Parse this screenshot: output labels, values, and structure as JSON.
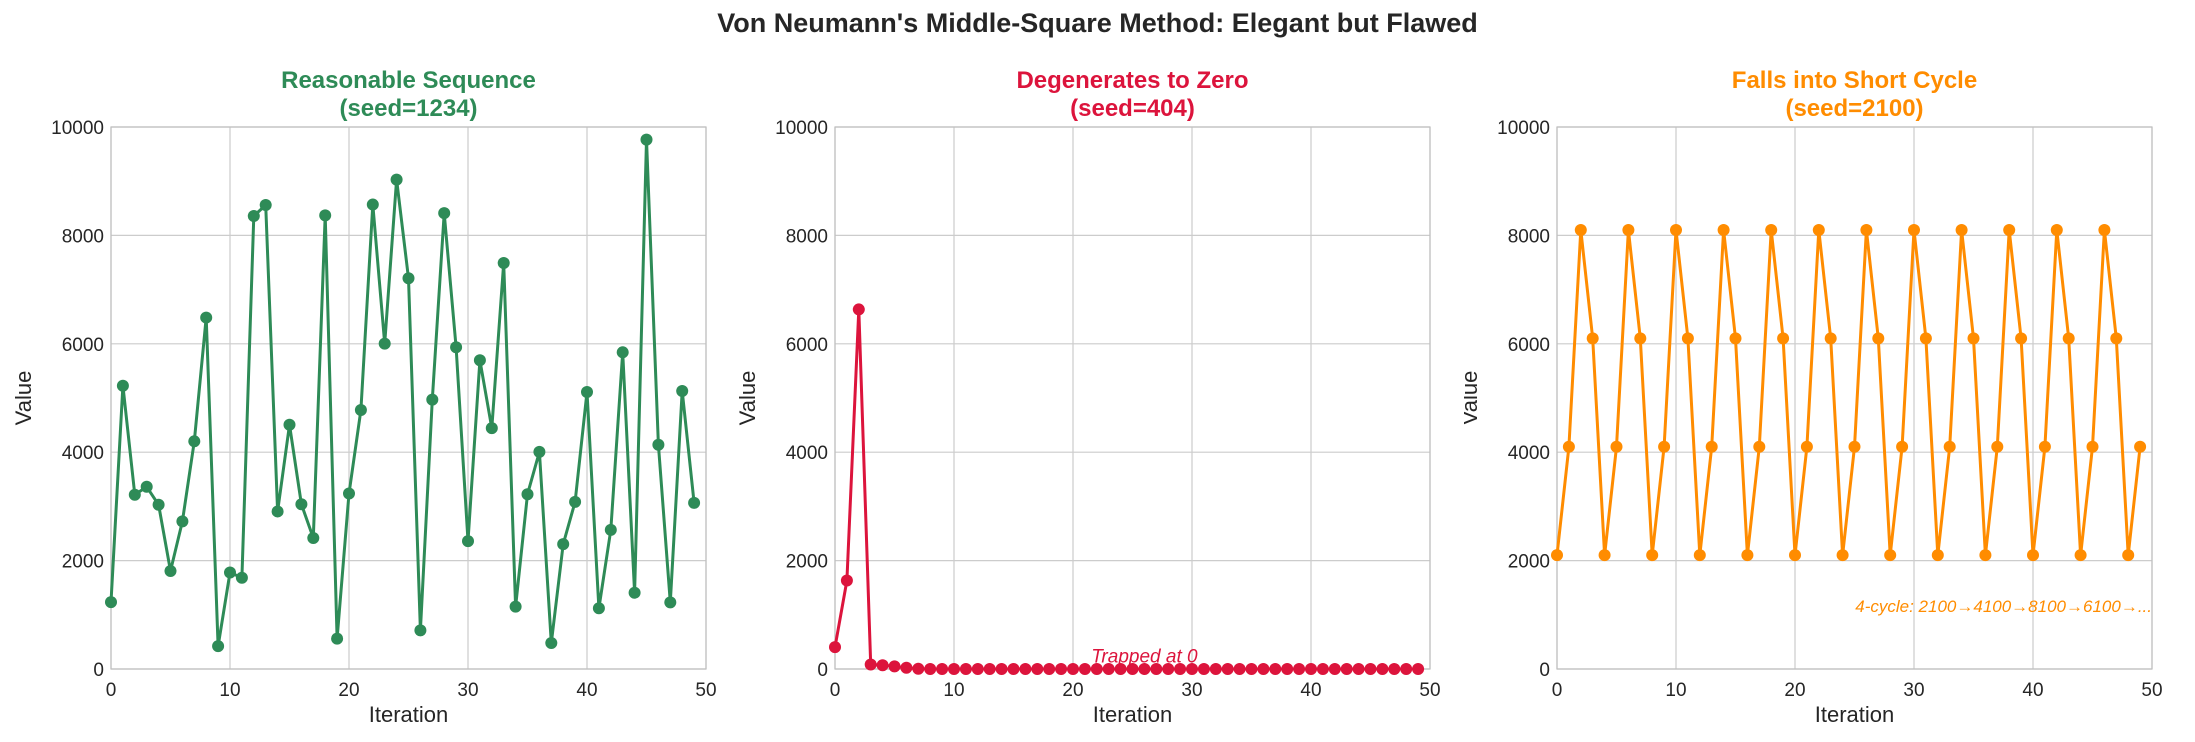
{
  "figure": {
    "title": "Von Neumann's Middle-Square Method: Elegant but Flawed"
  },
  "chart_data": [
    {
      "type": "line",
      "title": "Reasonable Sequence\n(seed=1234)",
      "title_color": "#2e8b57",
      "color": "#2e8b57",
      "xlabel": "Iteration",
      "ylabel": "Value",
      "xlim": [
        0,
        50
      ],
      "ylim": [
        0,
        10000
      ],
      "xticks": [
        "0",
        "10",
        "20",
        "30",
        "40",
        "50"
      ],
      "yticks": [
        "0",
        "2000",
        "4000",
        "6000",
        "8000",
        "10000"
      ],
      "grid": true,
      "annotation": "",
      "x": [
        0,
        1,
        2,
        3,
        4,
        5,
        6,
        7,
        8,
        9,
        10,
        11,
        12,
        13,
        14,
        15,
        16,
        17,
        18,
        19,
        20,
        21,
        22,
        23,
        24,
        25,
        26,
        27,
        28,
        29,
        30,
        31,
        32,
        33,
        34,
        35,
        36,
        37,
        38,
        39,
        40,
        41,
        42,
        43,
        44,
        45,
        46,
        47,
        48,
        49
      ],
      "values": [
        1234,
        5227,
        3215,
        3362,
        3030,
        1809,
        2724,
        4201,
        6484,
        422,
        1780,
        1684,
        8358,
        8561,
        2907,
        4506,
        3040,
        2416,
        8370,
        561,
        3237,
        4779,
        8569,
        6003,
        9030,
        7209,
        712,
        4971,
        8410,
        5936,
        2360,
        5696,
        4444,
        7491,
        1150,
        3225,
        4006,
        480,
        2304,
        3084,
        5110,
        1121,
        2566,
        5843,
        1406,
        9768,
        4138,
        1230,
        5129,
        3066
      ]
    },
    {
      "type": "line",
      "title": "Degenerates to Zero\n(seed=404)",
      "title_color": "#dc143c",
      "color": "#dc143c",
      "xlabel": "Iteration",
      "ylabel": "Value",
      "xlim": [
        0,
        50
      ],
      "ylim": [
        0,
        10000
      ],
      "xticks": [
        "0",
        "10",
        "20",
        "30",
        "40",
        "50"
      ],
      "yticks": [
        "0",
        "2000",
        "4000",
        "6000",
        "8000",
        "10000"
      ],
      "grid": true,
      "annotation": "Trapped at 0",
      "x": [
        0,
        1,
        2,
        3,
        4,
        5,
        6,
        7,
        8,
        9,
        10,
        11,
        12,
        13,
        14,
        15,
        16,
        17,
        18,
        19,
        20,
        21,
        22,
        23,
        24,
        25,
        26,
        27,
        28,
        29,
        30,
        31,
        32,
        33,
        34,
        35,
        36,
        37,
        38,
        39,
        40,
        41,
        42,
        43,
        44,
        45,
        46,
        47,
        48,
        49
      ],
      "values": [
        404,
        1632,
        6634,
        84,
        70,
        49,
        24,
        5,
        0,
        0,
        0,
        0,
        0,
        0,
        0,
        0,
        0,
        0,
        0,
        0,
        0,
        0,
        0,
        0,
        0,
        0,
        0,
        0,
        0,
        0,
        0,
        0,
        0,
        0,
        0,
        0,
        0,
        0,
        0,
        0,
        0,
        0,
        0,
        0,
        0,
        0,
        0,
        0,
        0,
        0
      ]
    },
    {
      "type": "line",
      "title": "Falls into Short Cycle\n(seed=2100)",
      "title_color": "#ff8c00",
      "color": "#ff8c00",
      "xlabel": "Iteration",
      "ylabel": "Value",
      "xlim": [
        0,
        50
      ],
      "ylim": [
        0,
        10000
      ],
      "xticks": [
        "0",
        "10",
        "20",
        "30",
        "40",
        "50"
      ],
      "yticks": [
        "0",
        "2000",
        "4000",
        "6000",
        "8000",
        "10000"
      ],
      "grid": true,
      "annotation": "4-cycle: 2100→4100→8100→6100→...",
      "x": [
        0,
        1,
        2,
        3,
        4,
        5,
        6,
        7,
        8,
        9,
        10,
        11,
        12,
        13,
        14,
        15,
        16,
        17,
        18,
        19,
        20,
        21,
        22,
        23,
        24,
        25,
        26,
        27,
        28,
        29,
        30,
        31,
        32,
        33,
        34,
        35,
        36,
        37,
        38,
        39,
        40,
        41,
        42,
        43,
        44,
        45,
        46,
        47,
        48,
        49
      ],
      "values": [
        2100,
        4100,
        8100,
        6100,
        2100,
        4100,
        8100,
        6100,
        2100,
        4100,
        8100,
        6100,
        2100,
        4100,
        8100,
        6100,
        2100,
        4100,
        8100,
        6100,
        2100,
        4100,
        8100,
        6100,
        2100,
        4100,
        8100,
        6100,
        2100,
        4100,
        8100,
        6100,
        2100,
        4100,
        8100,
        6100,
        2100,
        4100,
        8100,
        6100,
        2100,
        4100,
        8100,
        6100,
        2100,
        4100,
        8100,
        6100,
        2100,
        4100
      ]
    }
  ]
}
